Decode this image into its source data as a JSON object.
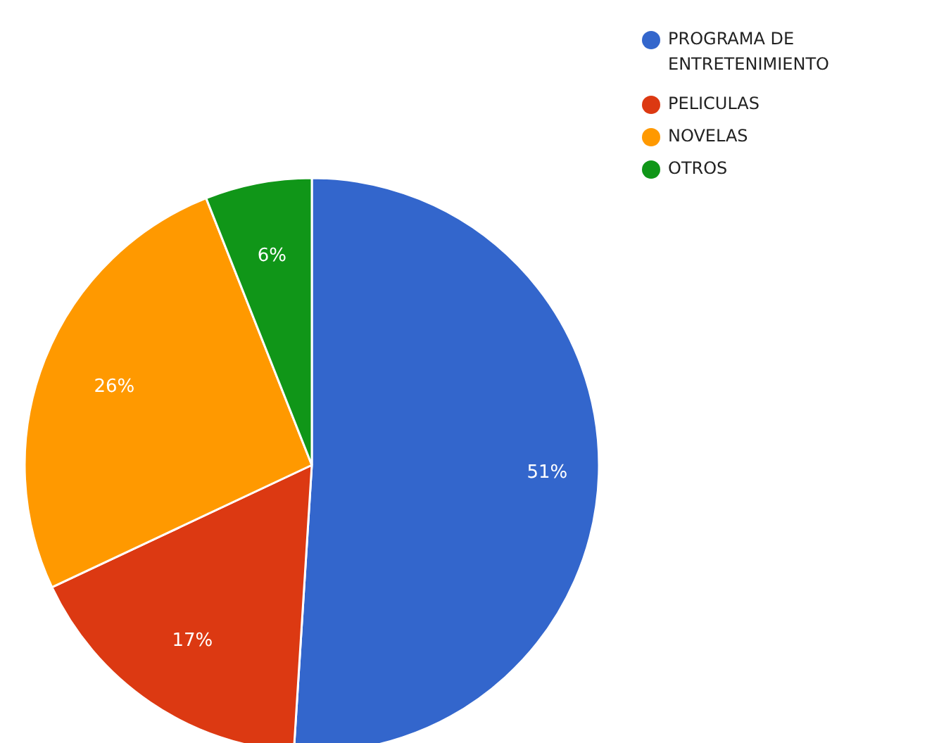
{
  "chart_data": {
    "type": "pie",
    "categories": [
      "PROGRAMA DE ENTRETENIMIENTO",
      "PELICULAS",
      "NOVELAS",
      "OTROS"
    ],
    "values": [
      51,
      17,
      26,
      6
    ],
    "colors": [
      "#3366cc",
      "#dc3912",
      "#ff9900",
      "#109618"
    ],
    "value_labels": [
      "51%",
      "17%",
      "26%",
      "6%"
    ],
    "legend": "top right"
  }
}
